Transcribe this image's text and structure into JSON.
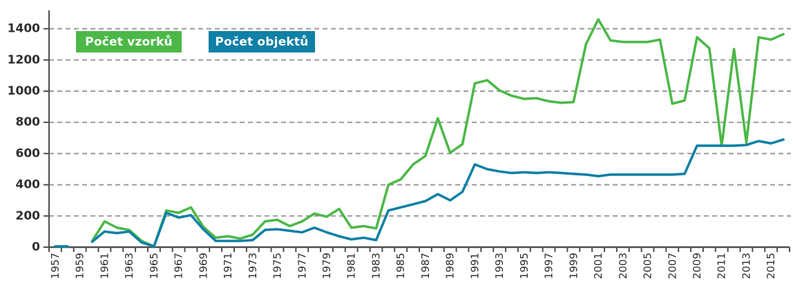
{
  "chart_data": {
    "type": "line",
    "title": "",
    "xlabel": "",
    "ylabel": "",
    "x": [
      1957,
      1958,
      1959,
      1960,
      1961,
      1962,
      1963,
      1964,
      1965,
      1966,
      1967,
      1968,
      1969,
      1970,
      1971,
      1972,
      1973,
      1974,
      1975,
      1976,
      1977,
      1978,
      1979,
      1980,
      1981,
      1982,
      1983,
      1984,
      1985,
      1986,
      1987,
      1988,
      1989,
      1990,
      1991,
      1992,
      1993,
      1994,
      1995,
      1996,
      1997,
      1998,
      1999,
      2000,
      2001,
      2002,
      2003,
      2004,
      2005,
      2006,
      2007,
      2008,
      2009,
      2010,
      2011,
      2012,
      2013,
      2014,
      2015,
      2016
    ],
    "x_tick_labels": [
      "1957",
      "1959",
      "1961",
      "1963",
      "1965",
      "1967",
      "1969",
      "1971",
      "1973",
      "1975",
      "1977",
      "1979",
      "1981",
      "1983",
      "1985",
      "1987",
      "1989",
      "1991",
      "1993",
      "1995",
      "1997",
      "1999",
      "2001",
      "2003",
      "2005",
      "2007",
      "2009",
      "2011",
      "2013",
      "2015"
    ],
    "yticks": [
      0,
      200,
      400,
      600,
      800,
      1000,
      1200,
      1400
    ],
    "ylim": [
      0,
      1480
    ],
    "grid": "horizontal-dashed",
    "legend_position": "top-left",
    "series": [
      {
        "name": "Počet vzorků",
        "color": "#4cb848",
        "values": [
          null,
          null,
          null,
          40,
          165,
          125,
          110,
          40,
          5,
          235,
          220,
          255,
          130,
          60,
          70,
          55,
          80,
          165,
          175,
          135,
          165,
          215,
          195,
          245,
          125,
          135,
          120,
          400,
          435,
          530,
          585,
          825,
          605,
          660,
          1050,
          1070,
          1005,
          970,
          950,
          955,
          935,
          925,
          930,
          1300,
          1460,
          1325,
          1315,
          1315,
          1315,
          1330,
          920,
          940,
          1345,
          1275,
          650,
          1270,
          670,
          1345,
          1330,
          1365
        ]
      },
      {
        "name": "Počet objektů",
        "color": "#0f80a6",
        "values": [
          5,
          5,
          null,
          35,
          100,
          90,
          100,
          30,
          5,
          220,
          190,
          205,
          115,
          40,
          40,
          40,
          45,
          110,
          115,
          105,
          95,
          125,
          95,
          70,
          50,
          60,
          45,
          235,
          255,
          275,
          295,
          340,
          300,
          355,
          530,
          500,
          485,
          475,
          480,
          475,
          480,
          475,
          470,
          465,
          455,
          465,
          465,
          465,
          465,
          465,
          465,
          470,
          650,
          650,
          650,
          650,
          655,
          680,
          665,
          690
        ]
      }
    ]
  },
  "legend": {
    "items": [
      {
        "label": "Počet vzorků",
        "color": "#4cb848"
      },
      {
        "label": "Počet objektů",
        "color": "#0f80a6"
      }
    ]
  },
  "colors": {
    "axis": "#4d4d4d",
    "grid": "#999999",
    "tick_label": "#2f2f2f",
    "background": "#ffffff"
  }
}
